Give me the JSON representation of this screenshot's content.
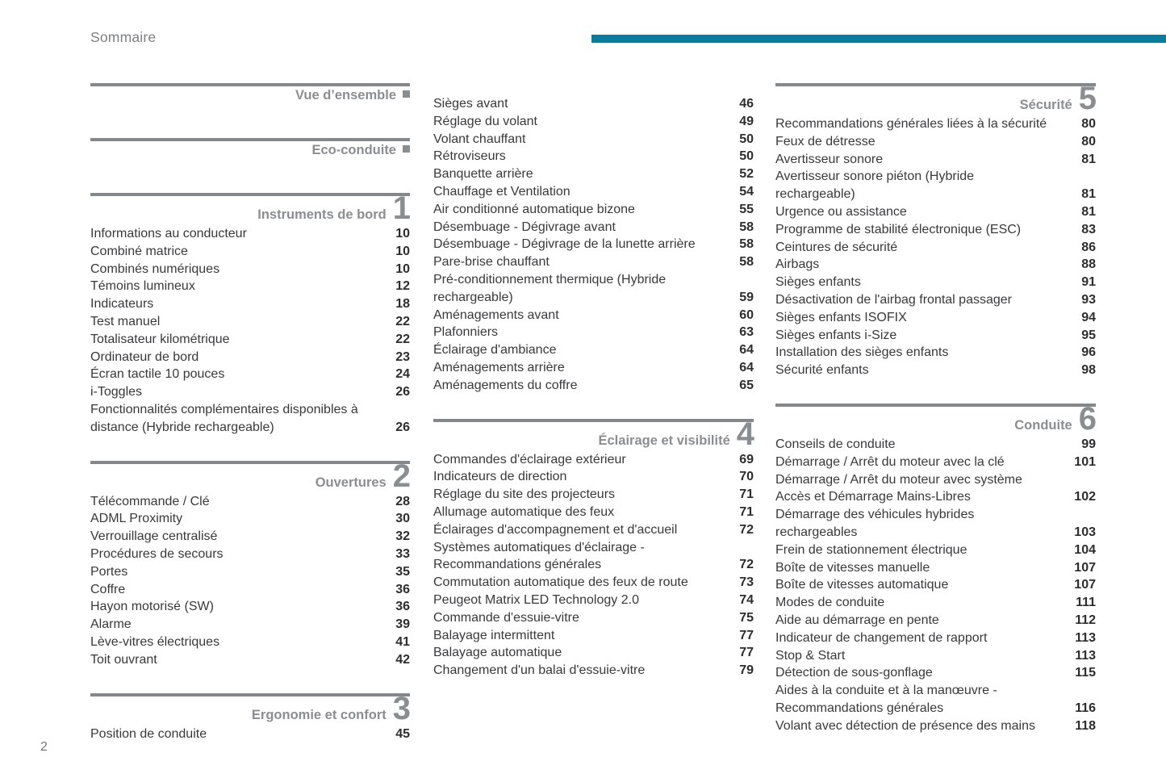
{
  "header": {
    "title": "Sommaire"
  },
  "accent_color": "#0a7a9d",
  "rule_color": "#85888b",
  "footer": {
    "page_number": "2"
  },
  "columns": [
    {
      "blocks": [
        {
          "type": "header",
          "title": "Vue d’ensemble",
          "marker": "square"
        },
        {
          "type": "header",
          "title": "Eco-conduite",
          "marker": "square"
        },
        {
          "type": "header",
          "title": "Instruments de bord",
          "number": "1"
        },
        {
          "type": "items",
          "entries": [
            {
              "lines": [
                "Informations au conducteur"
              ],
              "page": "10"
            },
            {
              "lines": [
                "Combiné matrice"
              ],
              "page": "10"
            },
            {
              "lines": [
                "Combinés numériques"
              ],
              "page": "10"
            },
            {
              "lines": [
                "Témoins lumineux"
              ],
              "page": "12"
            },
            {
              "lines": [
                "Indicateurs"
              ],
              "page": "18"
            },
            {
              "lines": [
                "Test manuel"
              ],
              "page": "22"
            },
            {
              "lines": [
                "Totalisateur kilométrique"
              ],
              "page": "22"
            },
            {
              "lines": [
                "Ordinateur de bord"
              ],
              "page": "23"
            },
            {
              "lines": [
                "Écran tactile 10 pouces"
              ],
              "page": "24"
            },
            {
              "lines": [
                "i-Toggles"
              ],
              "page": "26"
            },
            {
              "lines": [
                "Fonctionnalités complémentaires disponibles à",
                "distance (Hybride rechargeable)"
              ],
              "page": "26"
            }
          ]
        },
        {
          "type": "header",
          "title": "Ouvertures",
          "number": "2"
        },
        {
          "type": "items",
          "entries": [
            {
              "lines": [
                "Télécommande / Clé"
              ],
              "page": "28"
            },
            {
              "lines": [
                "ADML Proximity"
              ],
              "page": "30"
            },
            {
              "lines": [
                "Verrouillage centralisé"
              ],
              "page": "32"
            },
            {
              "lines": [
                "Procédures de secours"
              ],
              "page": "33"
            },
            {
              "lines": [
                "Portes"
              ],
              "page": "35"
            },
            {
              "lines": [
                "Coffre"
              ],
              "page": "36"
            },
            {
              "lines": [
                "Hayon motorisé (SW)"
              ],
              "page": "36"
            },
            {
              "lines": [
                "Alarme"
              ],
              "page": "39"
            },
            {
              "lines": [
                "Lève-vitres électriques"
              ],
              "page": "41"
            },
            {
              "lines": [
                "Toit ouvrant"
              ],
              "page": "42"
            }
          ]
        },
        {
          "type": "header",
          "title": "Ergonomie et confort",
          "number": "3"
        },
        {
          "type": "items",
          "entries": [
            {
              "lines": [
                "Position de conduite"
              ],
              "page": "45"
            }
          ]
        }
      ]
    },
    {
      "blocks": [
        {
          "type": "items",
          "entries": [
            {
              "lines": [
                "Sièges avant"
              ],
              "page": "46"
            },
            {
              "lines": [
                "Réglage du volant"
              ],
              "page": "49"
            },
            {
              "lines": [
                "Volant chauffant"
              ],
              "page": "50"
            },
            {
              "lines": [
                "Rétroviseurs"
              ],
              "page": "50"
            },
            {
              "lines": [
                "Banquette arrière"
              ],
              "page": "52"
            },
            {
              "lines": [
                "Chauffage et Ventilation"
              ],
              "page": "54"
            },
            {
              "lines": [
                "Air conditionné automatique bizone"
              ],
              "page": "55"
            },
            {
              "lines": [
                "Désembuage - Dégivrage avant"
              ],
              "page": "58"
            },
            {
              "lines": [
                "Désembuage - Dégivrage de la lunette arrière"
              ],
              "page": "58"
            },
            {
              "lines": [
                "Pare-brise chauffant"
              ],
              "page": "58"
            },
            {
              "lines": [
                "Pré-conditionnement thermique (Hybride",
                "rechargeable)"
              ],
              "page": "59"
            },
            {
              "lines": [
                "Aménagements avant"
              ],
              "page": "60"
            },
            {
              "lines": [
                "Plafonniers"
              ],
              "page": "63"
            },
            {
              "lines": [
                "Éclairage d'ambiance"
              ],
              "page": "64"
            },
            {
              "lines": [
                "Aménagements arrière"
              ],
              "page": "64"
            },
            {
              "lines": [
                "Aménagements du coffre"
              ],
              "page": "65"
            }
          ]
        },
        {
          "type": "header",
          "title": "Éclairage et visibilité",
          "number": "4"
        },
        {
          "type": "items",
          "entries": [
            {
              "lines": [
                "Commandes d'éclairage extérieur"
              ],
              "page": "69"
            },
            {
              "lines": [
                "Indicateurs de direction"
              ],
              "page": "70"
            },
            {
              "lines": [
                "Réglage du site des projecteurs"
              ],
              "page": "71"
            },
            {
              "lines": [
                "Allumage automatique des feux"
              ],
              "page": "71"
            },
            {
              "lines": [
                "Éclairages d'accompagnement et d'accueil"
              ],
              "page": "72"
            },
            {
              "lines": [
                "Systèmes automatiques d'éclairage -",
                "Recommandations générales"
              ],
              "page": "72"
            },
            {
              "lines": [
                "Commutation automatique des feux de route"
              ],
              "page": "73"
            },
            {
              "lines": [
                "Peugeot Matrix LED Technology 2.0"
              ],
              "page": "74"
            },
            {
              "lines": [
                "Commande d'essuie-vitre"
              ],
              "page": "75"
            },
            {
              "lines": [
                "Balayage intermittent"
              ],
              "page": "77"
            },
            {
              "lines": [
                "Balayage automatique"
              ],
              "page": "77"
            },
            {
              "lines": [
                "Changement d'un balai d'essuie-vitre"
              ],
              "page": "79"
            }
          ]
        }
      ]
    },
    {
      "blocks": [
        {
          "type": "header",
          "title": "Sécurité",
          "number": "5"
        },
        {
          "type": "items",
          "entries": [
            {
              "lines": [
                "Recommandations générales liées à la sécurité"
              ],
              "page": "80"
            },
            {
              "lines": [
                "Feux de détresse"
              ],
              "page": "80"
            },
            {
              "lines": [
                "Avertisseur sonore"
              ],
              "page": "81"
            },
            {
              "lines": [
                "Avertisseur sonore piéton (Hybride",
                "rechargeable)"
              ],
              "page": "81"
            },
            {
              "lines": [
                "Urgence ou assistance"
              ],
              "page": "81"
            },
            {
              "lines": [
                "Programme de stabilité électronique (ESC)"
              ],
              "page": "83"
            },
            {
              "lines": [
                "Ceintures de sécurité"
              ],
              "page": "86"
            },
            {
              "lines": [
                "Airbags"
              ],
              "page": "88"
            },
            {
              "lines": [
                "Sièges enfants"
              ],
              "page": "91"
            },
            {
              "lines": [
                "Désactivation de l'airbag frontal passager"
              ],
              "page": "93"
            },
            {
              "lines": [
                "Sièges enfants ISOFIX"
              ],
              "page": "94"
            },
            {
              "lines": [
                "Sièges enfants i-Size"
              ],
              "page": "95"
            },
            {
              "lines": [
                "Installation des sièges enfants"
              ],
              "page": "96"
            },
            {
              "lines": [
                "Sécurité enfants"
              ],
              "page": "98"
            }
          ]
        },
        {
          "type": "header",
          "title": "Conduite",
          "number": "6"
        },
        {
          "type": "items",
          "entries": [
            {
              "lines": [
                "Conseils de conduite"
              ],
              "page": "99"
            },
            {
              "lines": [
                "Démarrage / Arrêt du moteur avec la clé"
              ],
              "page": "101"
            },
            {
              "lines": [
                "Démarrage / Arrêt du moteur avec système",
                "Accès et Démarrage Mains-Libres"
              ],
              "page": "102"
            },
            {
              "lines": [
                "Démarrage des véhicules hybrides",
                "rechargeables"
              ],
              "page": "103"
            },
            {
              "lines": [
                "Frein de stationnement électrique"
              ],
              "page": "104"
            },
            {
              "lines": [
                "Boîte de vitesses manuelle"
              ],
              "page": "107"
            },
            {
              "lines": [
                "Boîte de vitesses automatique"
              ],
              "page": "107"
            },
            {
              "lines": [
                "Modes de conduite"
              ],
              "page": "111"
            },
            {
              "lines": [
                "Aide au démarrage en pente"
              ],
              "page": "112"
            },
            {
              "lines": [
                "Indicateur de changement de rapport"
              ],
              "page": "113"
            },
            {
              "lines": [
                "Stop & Start"
              ],
              "page": "113"
            },
            {
              "lines": [
                "Détection de sous-gonflage"
              ],
              "page": "115"
            },
            {
              "lines": [
                "Aides à la conduite et à la manœuvre -",
                "Recommandations générales"
              ],
              "page": "116"
            },
            {
              "lines": [
                "Volant avec détection de présence des mains"
              ],
              "page": "118"
            }
          ]
        }
      ]
    }
  ]
}
